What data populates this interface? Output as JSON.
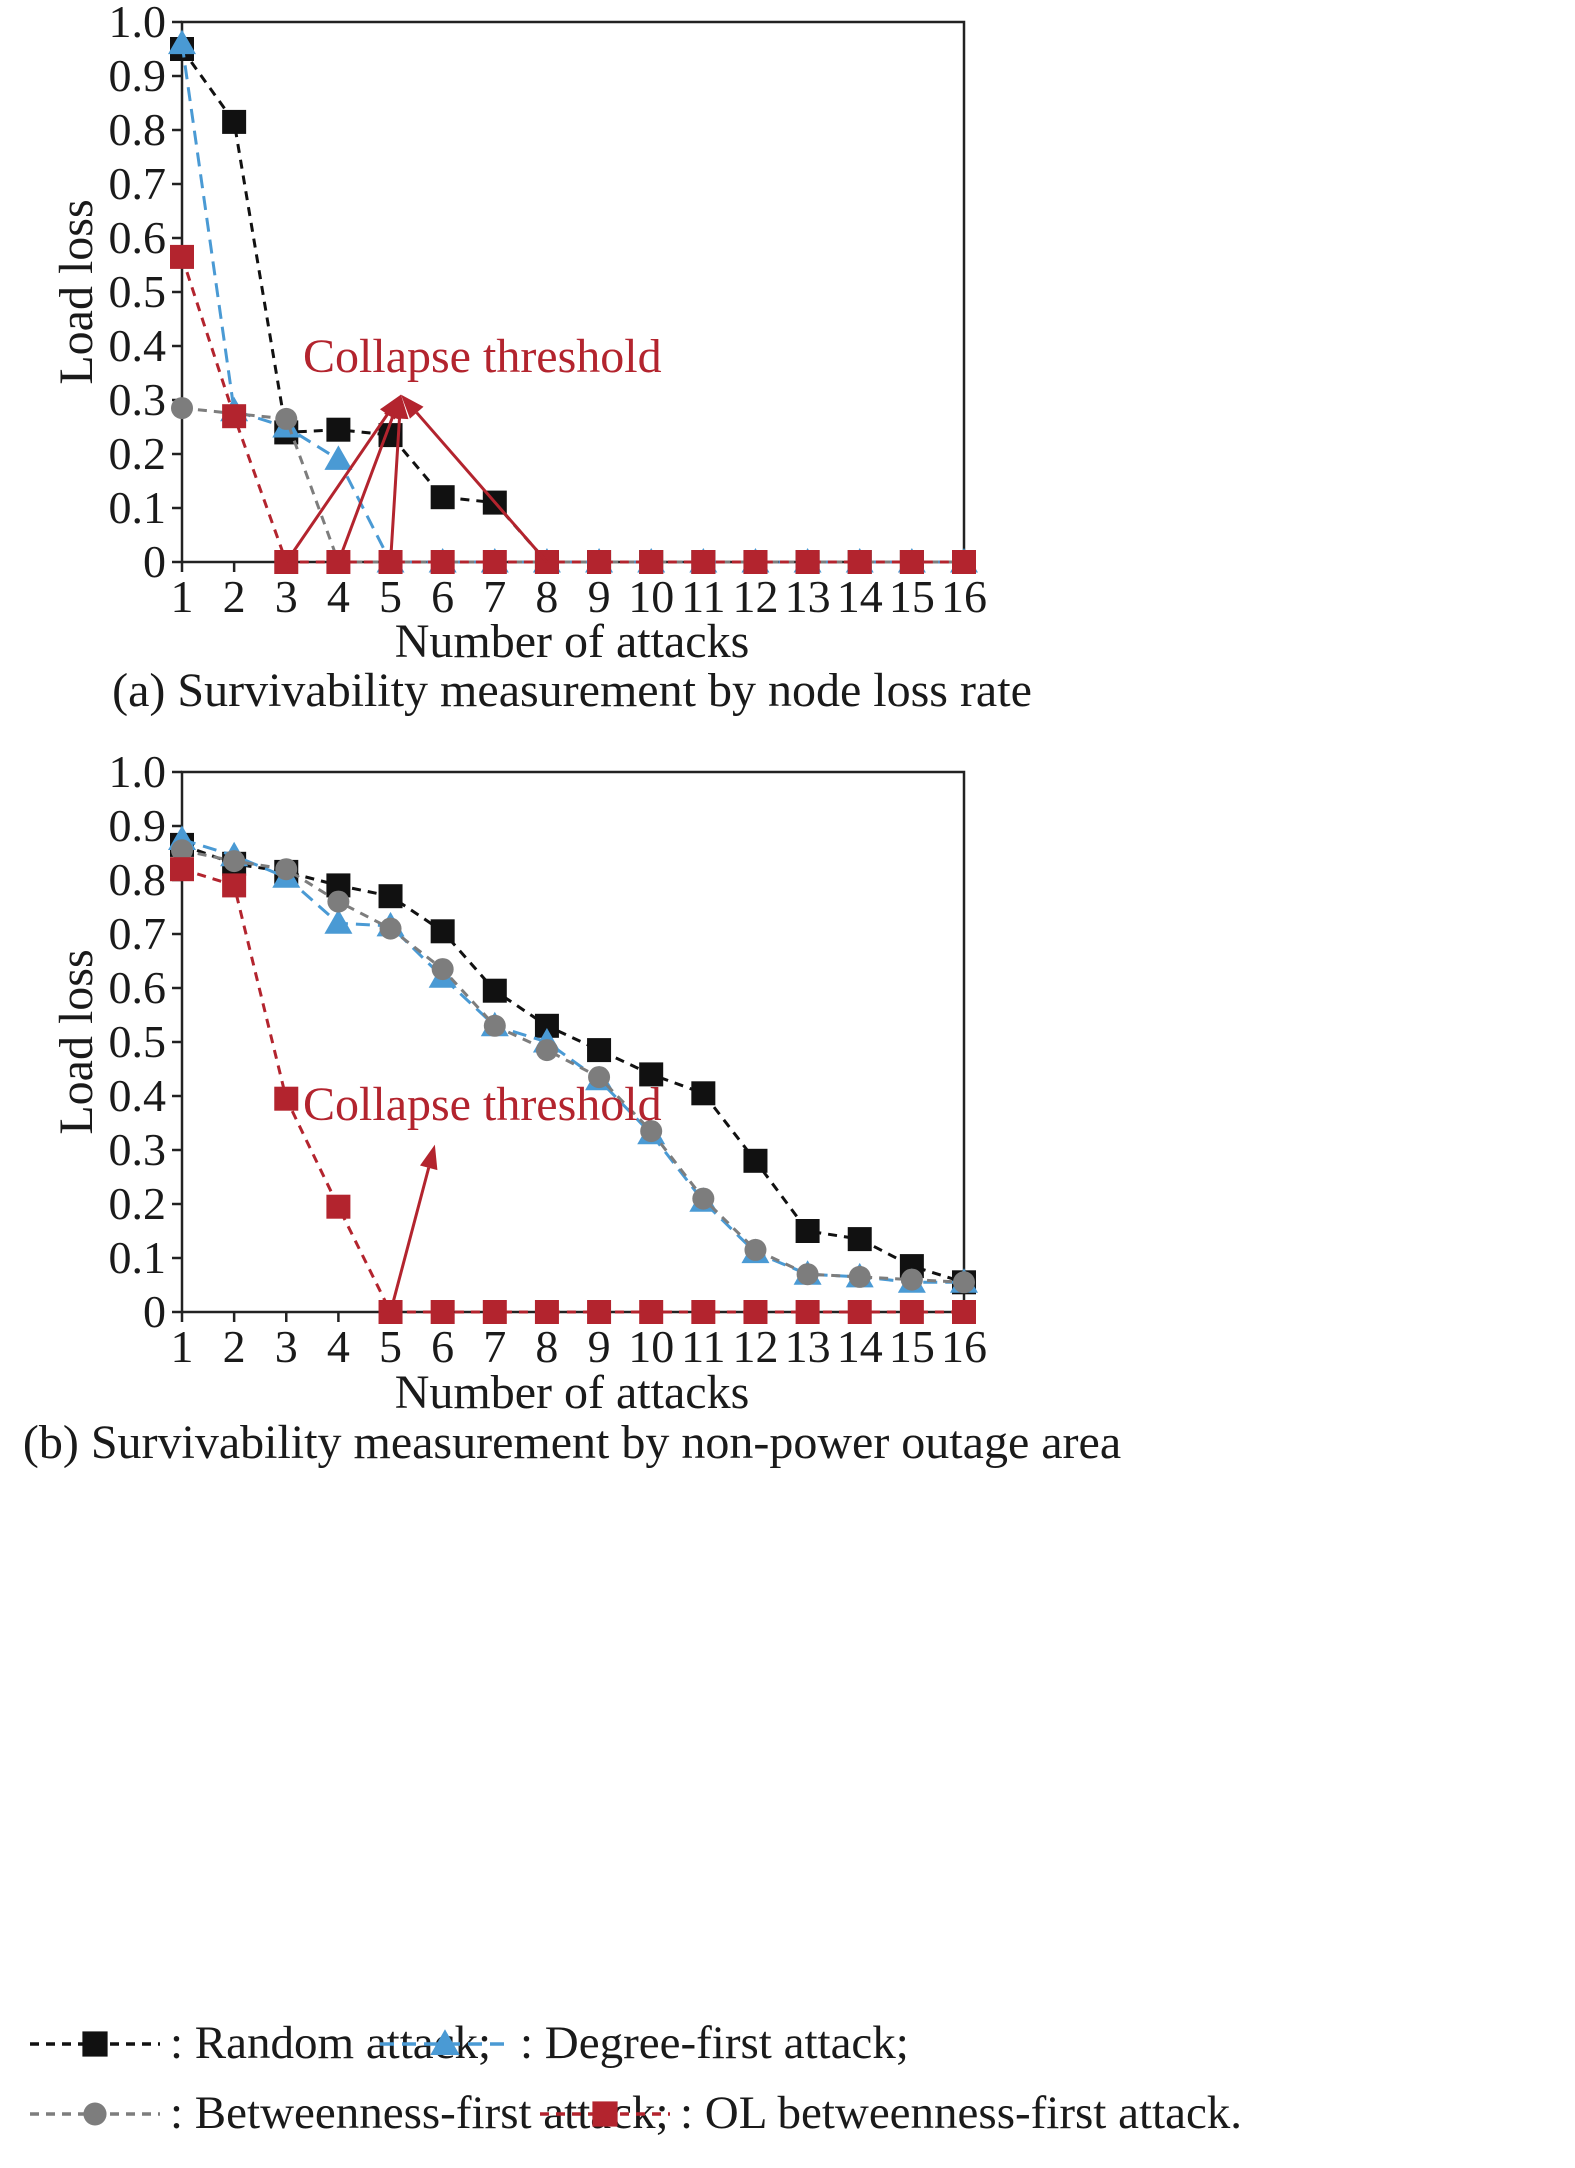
{
  "colors": {
    "random": "#111111",
    "degree": "#4a9ad4",
    "betweenness": "#7d7d7d",
    "ol": "#b3242e",
    "annotation": "#b3242e"
  },
  "chart_data": [
    {
      "type": "line",
      "caption": "(a) Survivability measurement by node loss rate",
      "xlabel": "Number of attacks",
      "ylabel": "Load loss",
      "x": [
        1,
        2,
        3,
        4,
        5,
        6,
        7,
        8,
        9,
        10,
        11,
        12,
        13,
        14,
        15,
        16
      ],
      "xlim": [
        1,
        16
      ],
      "ylim": [
        0,
        1.0
      ],
      "yticks": [
        "0",
        "0.1",
        "0.2",
        "0.3",
        "0.4",
        "0.5",
        "0.6",
        "0.7",
        "0.8",
        "0.9",
        "1.0"
      ],
      "annotation": {
        "text": "Collapse threshold",
        "arrow_tip": [
          5.2,
          0.31
        ],
        "arrow_sources": [
          [
            3,
            0
          ],
          [
            4,
            0
          ],
          [
            5,
            0
          ],
          [
            8,
            0
          ]
        ]
      },
      "series": [
        {
          "key": "random",
          "marker": "square",
          "values": [
            0.95,
            0.815,
            0.24,
            0.245,
            0.235,
            0.12,
            0.11,
            0,
            0,
            0,
            0,
            0,
            0,
            0,
            0,
            0
          ]
        },
        {
          "key": "degree",
          "marker": "triangle",
          "values": [
            0.96,
            0.28,
            0.25,
            0.19,
            0,
            0,
            0,
            0,
            0,
            0,
            0,
            0,
            0,
            0,
            0,
            0
          ]
        },
        {
          "key": "betweenness",
          "marker": "circle",
          "values": [
            0.285,
            null,
            0.265,
            0,
            0,
            0,
            0,
            0,
            0,
            0,
            0,
            0,
            0,
            0,
            0,
            0
          ]
        },
        {
          "key": "ol",
          "marker": "square",
          "values": [
            0.565,
            0.27,
            0,
            0,
            0,
            0,
            0,
            0,
            0,
            0,
            0,
            0,
            0,
            0,
            0,
            0
          ]
        }
      ]
    },
    {
      "type": "line",
      "caption": "(b) Survivability measurement by non-power outage area",
      "xlabel": "Number of attacks",
      "ylabel": "Load loss",
      "x": [
        1,
        2,
        3,
        4,
        5,
        6,
        7,
        8,
        9,
        10,
        11,
        12,
        13,
        14,
        15,
        16
      ],
      "xlim": [
        1,
        16
      ],
      "ylim": [
        0,
        1.0
      ],
      "yticks": [
        "0",
        "0.1",
        "0.2",
        "0.3",
        "0.4",
        "0.5",
        "0.6",
        "0.7",
        "0.8",
        "0.9",
        "1.0"
      ],
      "annotation": {
        "text": "Collapse threshold",
        "arrow_tip": [
          5.85,
          0.31
        ],
        "arrow_sources": [
          [
            5,
            0
          ]
        ]
      },
      "series": [
        {
          "key": "random",
          "marker": "square",
          "values": [
            0.865,
            0.83,
            0.815,
            0.79,
            0.77,
            0.705,
            0.595,
            0.53,
            0.485,
            0.44,
            0.405,
            0.28,
            0.15,
            0.135,
            0.085,
            0.055
          ]
        },
        {
          "key": "degree",
          "marker": "triangle",
          "values": [
            0.875,
            0.845,
            0.805,
            0.72,
            0.715,
            0.62,
            0.53,
            0.5,
            0.43,
            0.33,
            0.205,
            0.11,
            0.07,
            0.065,
            0.055,
            0.055
          ]
        },
        {
          "key": "betweenness",
          "marker": "circle",
          "values": [
            0.855,
            0.835,
            0.82,
            0.76,
            0.71,
            0.635,
            0.53,
            0.485,
            0.435,
            0.335,
            0.21,
            0.115,
            0.07,
            0.065,
            0.06,
            0.055
          ]
        },
        {
          "key": "ol",
          "marker": "square",
          "values": [
            0.82,
            0.79,
            0.395,
            0.195,
            0,
            0,
            0,
            0,
            0,
            0,
            0,
            0,
            0,
            0,
            0,
            0
          ]
        }
      ]
    }
  ],
  "legend": [
    {
      "key": "random",
      "marker": "square",
      "sample": "--■--",
      "label": ": Random attack;"
    },
    {
      "key": "degree",
      "marker": "triangle",
      "sample": "--▲--",
      "label": ": Degree-first attack;"
    },
    {
      "key": "betweenness",
      "marker": "circle",
      "sample": "--●--",
      "label": ": Betweenness-first attack;"
    },
    {
      "key": "ol",
      "marker": "square",
      "sample": "--■--",
      "label": ": OL betweenness-first attack."
    }
  ]
}
